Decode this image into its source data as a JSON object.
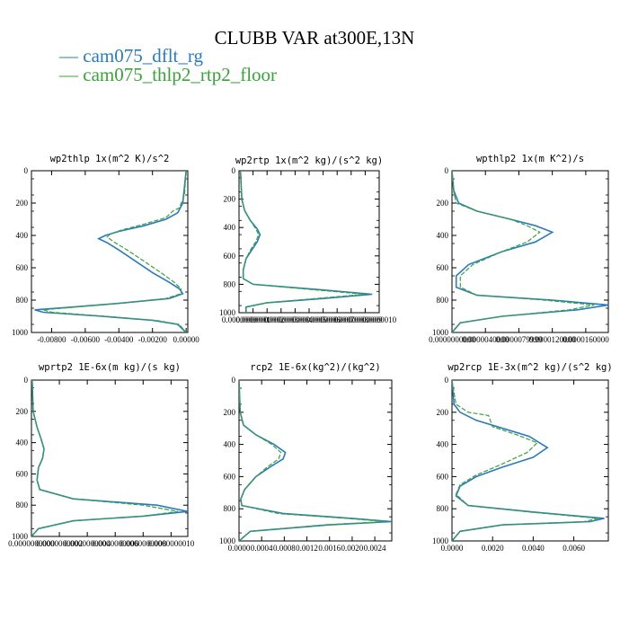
{
  "figure": {
    "title": "CLUBB VAR at300E,13N",
    "legend": [
      {
        "dash": "—",
        "label": "cam075_dflt_rg",
        "color": "#2a7bbf"
      },
      {
        "dash": "—",
        "label": "cam075_thlp2_rtp2_floor",
        "color": "#3aa33a"
      }
    ]
  },
  "chart_data": [
    {
      "type": "line",
      "title": "wp2thlp  1x(m^2 K)/s^2",
      "xlim": [
        -0.0092,
        0.0001
      ],
      "ylim": [
        1000,
        0
      ],
      "xticks": [
        -0.008,
        -0.006,
        -0.004,
        -0.002,
        0.0
      ],
      "xtick_labels": [
        "-0.00800",
        "-0.00600",
        "-0.00400",
        "-0.00200",
        "0.00000"
      ],
      "yticks": [
        0,
        200,
        400,
        600,
        800,
        1000
      ],
      "series": [
        {
          "name": "cam075_dflt_rg",
          "color": "#2a7bbf",
          "x": [
            0,
            -0.0001,
            -0.0002,
            -0.0005,
            -0.0012,
            -0.0025,
            -0.004,
            -0.0048,
            -0.0052,
            -0.0047,
            -0.004,
            -0.003,
            -0.002,
            -0.001,
            -0.0004,
            -0.0002,
            -0.001,
            -0.004,
            -0.007,
            -0.009,
            -0.0085,
            -0.005,
            -0.002,
            -0.0005,
            0
          ],
          "y": [
            0,
            100,
            200,
            260,
            300,
            340,
            375,
            400,
            420,
            445,
            490,
            560,
            630,
            690,
            730,
            760,
            790,
            820,
            845,
            860,
            875,
            900,
            925,
            950,
            1000
          ]
        },
        {
          "name": "cam075_thlp2_rtp2_floor",
          "color": "#3aa33a",
          "x": [
            0,
            -0.0001,
            -0.0004,
            -0.0008,
            -0.0012,
            -0.0025,
            -0.0038,
            -0.0045,
            -0.0047,
            -0.0043,
            -0.0035,
            -0.0025,
            -0.0015,
            -0.0007,
            -0.0003,
            -0.0003,
            -0.0012,
            -0.004,
            -0.0068,
            -0.0085,
            -0.008,
            -0.0048,
            -0.0018,
            -0.0004,
            0
          ],
          "y": [
            0,
            150,
            230,
            250,
            290,
            330,
            365,
            390,
            410,
            440,
            490,
            560,
            630,
            690,
            730,
            760,
            790,
            820,
            845,
            860,
            875,
            900,
            925,
            950,
            1000
          ]
        }
      ]
    },
    {
      "type": "line",
      "title": "wp2rtp  1x(m^2 kg)/(s^2 kg)",
      "xlim": [
        0,
        1e-06
      ],
      "ylim": [
        1000,
        0
      ],
      "xticks": [
        0,
        1e-07,
        2e-07,
        3e-07,
        4e-07,
        5e-07,
        6e-07,
        7e-07,
        8e-07,
        9e-07,
        1e-06
      ],
      "xtick_labels": [
        "0.0000000",
        "0.0000001",
        "0.0000002",
        "0.0000003",
        "0.0000004",
        "0.0000005",
        "0.0000006",
        "0.0000007",
        "0.0000008",
        "0.0000009",
        "0.0000010"
      ],
      "yticks": [
        0,
        200,
        400,
        600,
        800,
        1000
      ],
      "series": [
        {
          "name": "cam075_dflt_rg",
          "color": "#2a7bbf",
          "x": [
            1e-08,
            2e-08,
            4e-08,
            8e-08,
            1.3e-07,
            1.5e-07,
            1.3e-07,
            9e-08,
            5e-08,
            3e-08,
            3e-08,
            1e-07,
            6e-07,
            9.5e-07,
            6e-07,
            2e-07,
            5e-08,
            5e-08
          ],
          "y": [
            0,
            200,
            280,
            350,
            410,
            450,
            500,
            560,
            620,
            700,
            760,
            800,
            840,
            870,
            900,
            930,
            960,
            1000
          ]
        },
        {
          "name": "cam075_thlp2_rtp2_floor",
          "color": "#3aa33a",
          "x": [
            1e-08,
            2e-08,
            4e-08,
            8e-08,
            1.2e-07,
            1.4e-07,
            1.2e-07,
            8e-08,
            5e-08,
            3e-08,
            3e-08,
            1e-07,
            5.5e-07,
            9e-07,
            5.5e-07,
            2e-07,
            5e-08,
            5e-08
          ],
          "y": [
            0,
            200,
            280,
            350,
            410,
            450,
            500,
            560,
            620,
            700,
            760,
            800,
            840,
            870,
            900,
            930,
            960,
            1000
          ]
        }
      ]
    },
    {
      "type": "line",
      "title": "wpthlp2  1x(m K^2)/s",
      "xlim": [
        0,
        1.87e-05
      ],
      "ylim": [
        1000,
        0
      ],
      "xticks": [
        0,
        4e-06,
        8e-06,
        1.2e-05,
        1.6e-05
      ],
      "xtick_labels": [
        "0.0000000000",
        "0.0000040000",
        "0.0000079999",
        "0.0000120000",
        "0.0000160000"
      ],
      "yticks": [
        0,
        200,
        400,
        600,
        800,
        1000
      ],
      "series": [
        {
          "name": "cam075_dflt_rg",
          "color": "#2a7bbf",
          "x": [
            0,
            2e-07,
            8e-07,
            3e-06,
            7e-06,
            1e-05,
            1.2e-05,
            1e-05,
            6e-06,
            2e-06,
            5e-07,
            5e-07,
            3e-06,
            1.2e-05,
            1.87e-05,
            1.5e-05,
            6e-06,
            1e-06,
            0
          ],
          "y": [
            0,
            120,
            200,
            250,
            300,
            340,
            380,
            440,
            500,
            580,
            650,
            720,
            770,
            800,
            830,
            860,
            900,
            940,
            1000
          ]
        },
        {
          "name": "cam075_thlp2_rtp2_floor",
          "color": "#3aa33a",
          "x": [
            0,
            2e-07,
            5e-07,
            3e-06,
            7e-06,
            9e-06,
            1.05e-05,
            9e-06,
            6e-06,
            2.5e-06,
            1e-06,
            1e-06,
            3e-06,
            1.1e-05,
            1.7e-05,
            1.4e-05,
            6e-06,
            1e-06,
            0
          ],
          "y": [
            0,
            130,
            200,
            250,
            300,
            340,
            380,
            440,
            500,
            580,
            650,
            720,
            770,
            800,
            830,
            860,
            900,
            940,
            1000
          ]
        }
      ]
    },
    {
      "type": "line",
      "title": "wprtp2  1E-6x(m kg)/(s kg)",
      "xlim": [
        0,
        1.12e-09
      ],
      "ylim": [
        1000,
        0
      ],
      "xticks": [
        0,
        2e-10,
        4e-10,
        6e-10,
        8e-10,
        1e-09
      ],
      "xtick_labels": [
        "0.0000000000",
        "0.0000000002",
        "0.0000000004",
        "0.0000000006",
        "0.0000000008",
        "0.0000000010"
      ],
      "yticks": [
        0,
        200,
        400,
        600,
        800,
        1000
      ],
      "series": [
        {
          "name": "cam075_dflt_rg",
          "color": "#2a7bbf",
          "x": [
            5e-12,
            1.2e-11,
            4e-11,
            7e-11,
            9e-11,
            8e-11,
            5e-11,
            4e-11,
            6e-11,
            3e-10,
            9e-10,
            1.12e-09,
            8e-10,
            3e-10,
            5e-11,
            0
          ],
          "y": [
            0,
            200,
            300,
            380,
            440,
            500,
            560,
            640,
            700,
            760,
            800,
            840,
            870,
            900,
            950,
            1000
          ]
        },
        {
          "name": "cam075_thlp2_rtp2_floor",
          "color": "#3aa33a",
          "x": [
            5e-12,
            1.2e-11,
            4e-11,
            7e-11,
            9e-11,
            8e-11,
            5e-11,
            4e-11,
            6e-11,
            3e-10,
            8e-10,
            1.05e-09,
            8e-10,
            3e-10,
            5e-11,
            0
          ],
          "y": [
            0,
            200,
            300,
            380,
            440,
            500,
            560,
            640,
            700,
            760,
            800,
            840,
            870,
            900,
            950,
            1000
          ]
        }
      ]
    },
    {
      "type": "line",
      "title": "rcp2  1E-6x(kg^2)/(kg^2)",
      "xlim": [
        0,
        0.0027
      ],
      "ylim": [
        1000,
        0
      ],
      "xticks": [
        0,
        0.0004,
        0.0008,
        0.0012,
        0.0016,
        0.002,
        0.0024
      ],
      "xtick_labels": [
        "0.0000",
        "0.0004",
        "0.0008",
        "0.0012",
        "0.0016",
        "0.0020",
        "0.0024"
      ],
      "yticks": [
        0,
        200,
        400,
        600,
        800,
        1000
      ],
      "series": [
        {
          "name": "cam075_dflt_rg",
          "color": "#2a7bbf",
          "x": [
            0,
            2e-05,
            8e-05,
            0.0003,
            0.00062,
            0.00082,
            0.00078,
            0.00055,
            0.0003,
            0.0001,
            3e-05,
            5e-05,
            0.0008,
            0.002,
            0.0027,
            0.0016,
            0.0002,
            0
          ],
          "y": [
            0,
            200,
            280,
            340,
            400,
            450,
            490,
            540,
            600,
            680,
            740,
            780,
            830,
            860,
            880,
            900,
            940,
            1000
          ]
        },
        {
          "name": "cam075_thlp2_rtp2_floor",
          "color": "#3aa33a",
          "x": [
            0,
            2e-05,
            8e-05,
            0.0003,
            0.00058,
            0.00074,
            0.0007,
            0.0005,
            0.0003,
            0.0001,
            3e-05,
            5e-05,
            0.0007,
            0.0019,
            0.0026,
            0.0015,
            0.0002,
            0
          ],
          "y": [
            0,
            200,
            280,
            340,
            400,
            450,
            490,
            540,
            600,
            680,
            740,
            780,
            830,
            860,
            880,
            900,
            940,
            1000
          ]
        }
      ]
    },
    {
      "type": "line",
      "title": "wp2rcp  1E-3x(m^2 kg)/(s^2 kg)",
      "xlim": [
        0,
        0.0077
      ],
      "ylim": [
        1000,
        0
      ],
      "xticks": [
        0,
        0.002,
        0.004,
        0.006
      ],
      "xtick_labels": [
        "0.0000",
        "0.0020",
        "0.0040",
        "0.0060"
      ],
      "yticks": [
        0,
        200,
        400,
        600,
        800,
        1000
      ],
      "series": [
        {
          "name": "cam075_dflt_rg",
          "color": "#2a7bbf",
          "x": [
            0,
            0.0001,
            0.0004,
            0.0012,
            0.0025,
            0.0038,
            0.0047,
            0.004,
            0.0025,
            0.0012,
            0.0004,
            0.0002,
            0.0008,
            0.004,
            0.0075,
            0.0068,
            0.0025,
            0.0004,
            0
          ],
          "y": [
            0,
            150,
            200,
            250,
            300,
            350,
            420,
            480,
            540,
            600,
            660,
            720,
            780,
            820,
            860,
            880,
            900,
            940,
            1000
          ]
        },
        {
          "name": "cam075_thlp2_rtp2_floor",
          "color": "#3aa33a",
          "x": [
            0,
            0.0002,
            0.0008,
            0.0018,
            0.002,
            0.0032,
            0.0042,
            0.0037,
            0.0025,
            0.0012,
            0.0004,
            0.0002,
            0.0008,
            0.0038,
            0.0072,
            0.0065,
            0.0025,
            0.0004,
            0
          ],
          "y": [
            0,
            150,
            200,
            220,
            290,
            340,
            390,
            450,
            520,
            590,
            650,
            710,
            780,
            820,
            860,
            880,
            900,
            940,
            1000
          ]
        }
      ]
    }
  ]
}
